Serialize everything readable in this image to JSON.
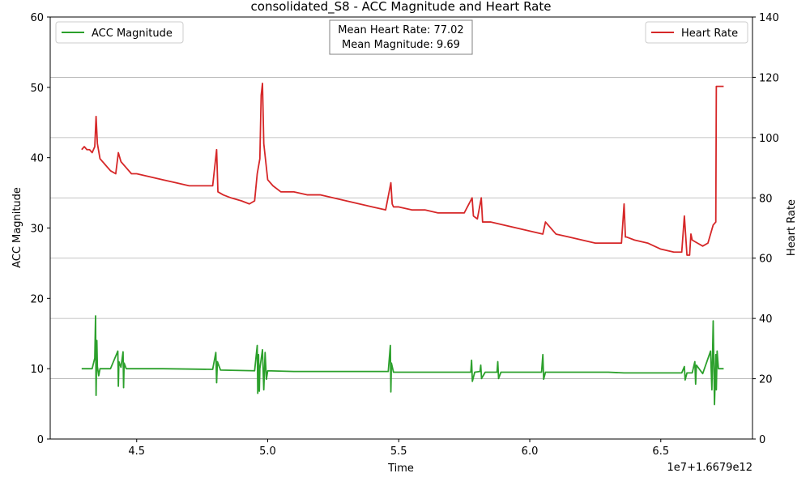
{
  "chart_data": {
    "type": "line",
    "title": "consolidated_S8 - ACC Magnitude and Heart Rate",
    "xlabel": "Time",
    "x_offset_label": "1e7+1.6679e12",
    "ylabel_left": "ACC Magnitude",
    "ylabel_right": "Heart Rate",
    "xlim": [
      4.17,
      6.85
    ],
    "ylim_left": [
      0,
      60
    ],
    "ylim_right": [
      0,
      140
    ],
    "x_ticks": [
      "4.5",
      "5.0",
      "5.5",
      "6.0",
      "6.5"
    ],
    "x_tick_values": [
      4.5,
      5.0,
      5.5,
      6.0,
      6.5
    ],
    "y_ticks_left": [
      "0",
      "10",
      "20",
      "30",
      "40",
      "50",
      "60"
    ],
    "y_ticks_right": [
      "0",
      "20",
      "40",
      "60",
      "80",
      "100",
      "120",
      "140"
    ],
    "grid": "horizontal (right axis)",
    "annotation": {
      "line1": "Mean Heart Rate: 77.02",
      "line2": "Mean Magnitude: 9.69"
    },
    "legend_left": {
      "placement": "top-left",
      "label": "ACC Magnitude",
      "color": "#2ca02c"
    },
    "legend_right": {
      "placement": "top-right",
      "label": "Heart Rate",
      "color": "#d62728"
    },
    "series": [
      {
        "name": "Heart Rate",
        "axis": "right",
        "color": "#d62728",
        "x": [
          4.29,
          4.3,
          4.31,
          4.32,
          4.33,
          4.34,
          4.345,
          4.35,
          4.36,
          4.38,
          4.4,
          4.42,
          4.43,
          4.44,
          4.46,
          4.48,
          4.5,
          4.55,
          4.6,
          4.65,
          4.7,
          4.75,
          4.79,
          4.805,
          4.81,
          4.83,
          4.86,
          4.9,
          4.93,
          4.95,
          4.96,
          4.97,
          4.975,
          4.98,
          4.985,
          4.99,
          5.0,
          5.02,
          5.05,
          5.1,
          5.15,
          5.2,
          5.25,
          5.3,
          5.35,
          5.4,
          5.45,
          5.47,
          5.475,
          5.48,
          5.5,
          5.55,
          5.6,
          5.65,
          5.7,
          5.75,
          5.78,
          5.785,
          5.8,
          5.815,
          5.82,
          5.85,
          5.9,
          5.95,
          6.0,
          6.05,
          6.06,
          6.1,
          6.15,
          6.2,
          6.25,
          6.3,
          6.35,
          6.36,
          6.365,
          6.37,
          6.4,
          6.45,
          6.5,
          6.55,
          6.58,
          6.59,
          6.6,
          6.61,
          6.615,
          6.62,
          6.64,
          6.66,
          6.68,
          6.7,
          6.71,
          6.712,
          6.715,
          6.74
        ],
        "values": [
          96,
          97,
          96,
          96,
          95,
          97,
          107,
          98,
          93,
          91,
          89,
          88,
          95,
          92,
          90,
          88,
          88,
          87,
          86,
          85,
          84,
          84,
          84,
          96,
          82,
          81,
          80,
          79,
          78,
          79,
          88,
          93,
          114,
          118,
          98,
          94,
          86,
          84,
          82,
          82,
          81,
          81,
          80,
          79,
          78,
          77,
          76,
          85,
          78,
          77,
          77,
          76,
          76,
          75,
          75,
          75,
          80,
          74,
          73,
          80,
          72,
          72,
          71,
          70,
          69,
          68,
          72,
          68,
          67,
          66,
          65,
          65,
          65,
          78,
          67,
          67,
          66,
          65,
          63,
          62,
          62,
          74,
          61,
          61,
          68,
          66,
          65,
          64,
          65,
          71,
          72,
          117,
          117,
          117
        ]
      },
      {
        "name": "ACC Magnitude",
        "axis": "left",
        "color": "#2ca02c",
        "x": [
          4.29,
          4.33,
          4.34,
          4.343,
          4.345,
          4.348,
          4.35,
          4.355,
          4.36,
          4.4,
          4.428,
          4.43,
          4.432,
          4.44,
          4.448,
          4.45,
          4.452,
          4.46,
          4.6,
          4.79,
          4.802,
          4.805,
          4.808,
          4.82,
          4.95,
          4.96,
          4.962,
          4.965,
          4.968,
          4.97,
          4.98,
          4.985,
          4.99,
          4.995,
          5.0,
          5.1,
          5.3,
          5.46,
          5.468,
          5.47,
          5.472,
          5.48,
          5.7,
          5.775,
          5.778,
          5.781,
          5.79,
          5.81,
          5.813,
          5.816,
          5.83,
          5.875,
          5.878,
          5.881,
          5.89,
          6.045,
          6.05,
          6.053,
          6.06,
          6.3,
          6.36,
          6.58,
          6.59,
          6.593,
          6.6,
          6.62,
          6.63,
          6.633,
          6.636,
          6.66,
          6.69,
          6.695,
          6.7,
          6.705,
          6.71,
          6.712,
          6.715,
          6.72,
          6.74
        ],
        "values": [
          10.0,
          10.0,
          11.5,
          17.5,
          6.2,
          14.0,
          10.3,
          9.0,
          10.0,
          10.0,
          12.5,
          7.5,
          11.0,
          10.2,
          12.4,
          7.3,
          10.8,
          10.0,
          10.0,
          9.9,
          12.3,
          8.0,
          11.0,
          9.8,
          9.7,
          13.3,
          6.5,
          12.0,
          6.8,
          10.0,
          12.7,
          7.0,
          12.3,
          8.5,
          9.7,
          9.6,
          9.6,
          9.6,
          13.3,
          6.7,
          10.8,
          9.5,
          9.5,
          9.5,
          11.2,
          8.2,
          9.5,
          9.6,
          10.5,
          8.6,
          9.5,
          9.5,
          11.0,
          8.6,
          9.5,
          9.5,
          12.0,
          8.5,
          9.5,
          9.5,
          9.4,
          9.4,
          10.3,
          8.4,
          9.4,
          9.4,
          11.0,
          7.8,
          10.5,
          9.3,
          12.5,
          7.0,
          16.8,
          4.9,
          12.0,
          7.0,
          12.5,
          10.0,
          10.0
        ]
      }
    ]
  }
}
